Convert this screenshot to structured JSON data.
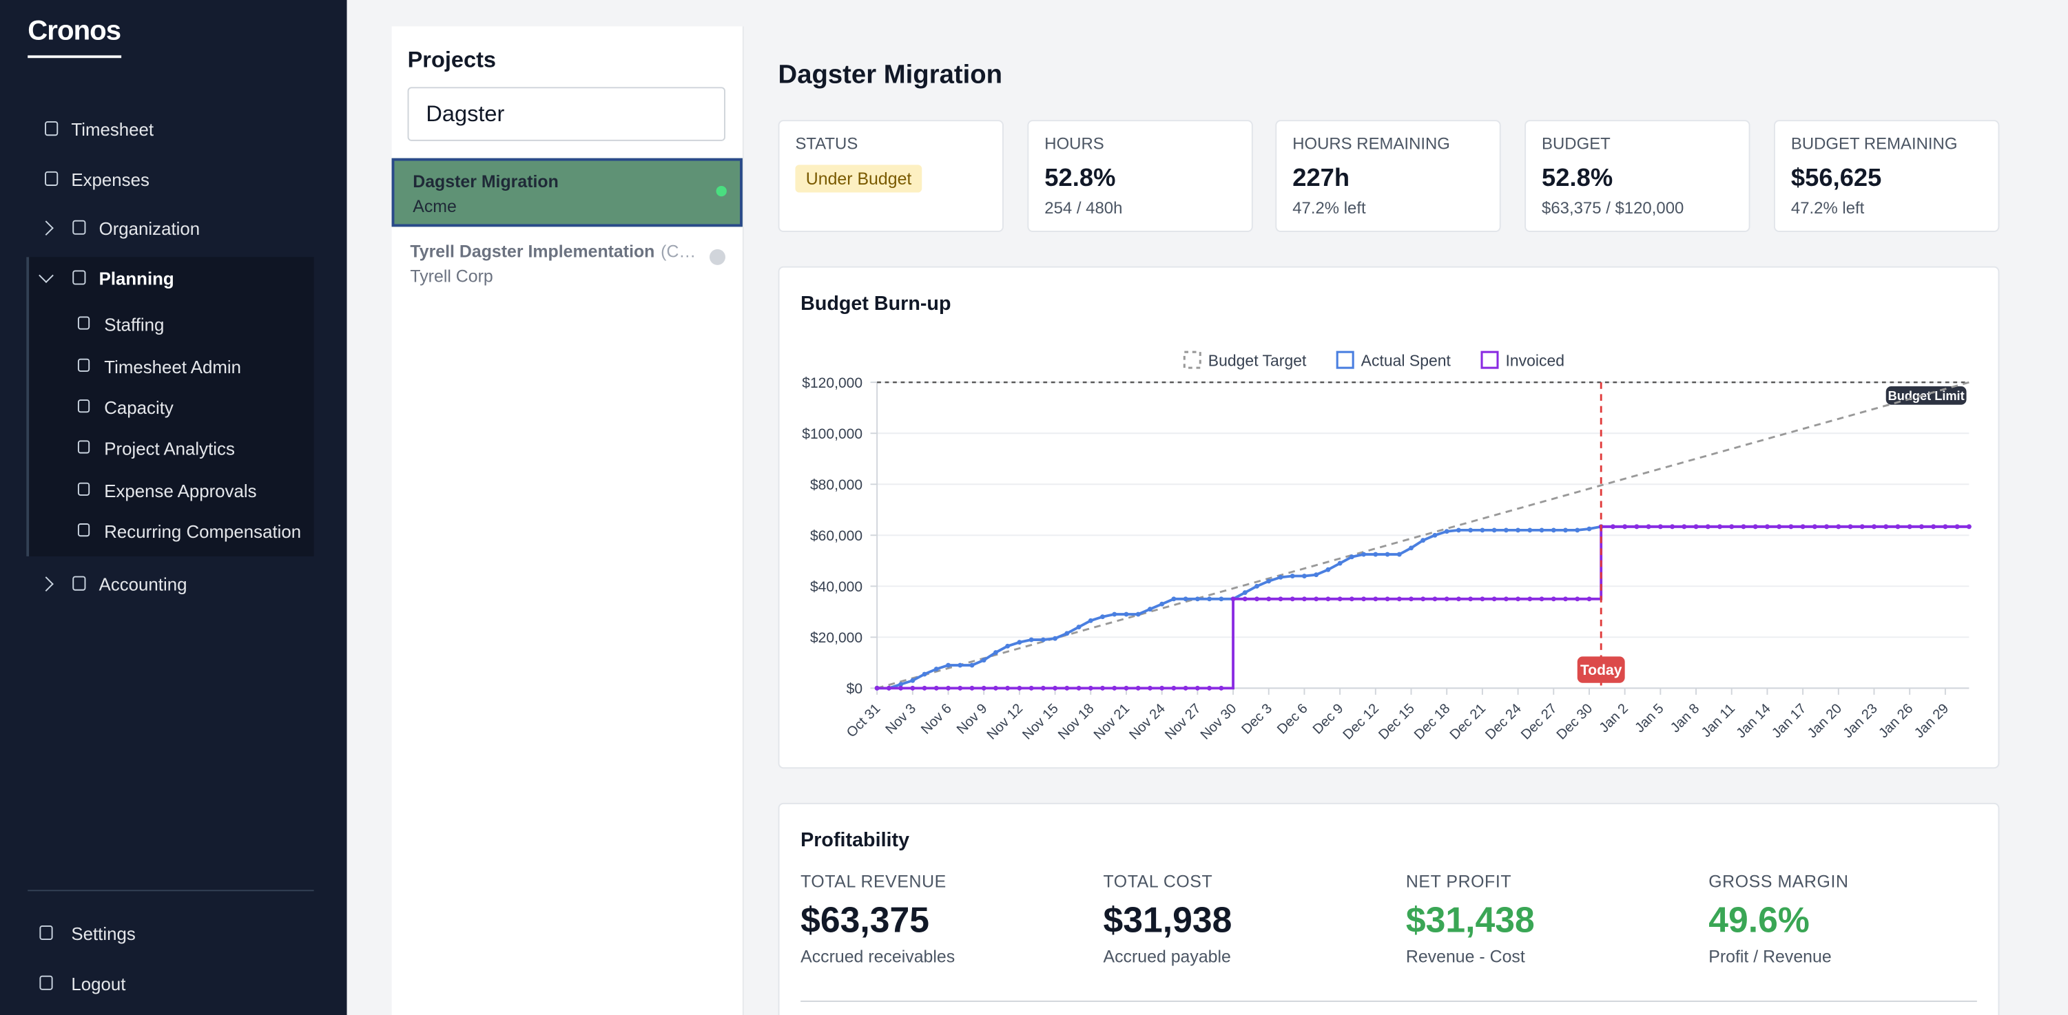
{
  "sidebar": {
    "brand": "Cronos",
    "nav": [
      {
        "label": "Timesheet"
      },
      {
        "label": "Expenses"
      },
      {
        "label": "Organization"
      },
      {
        "label": "Planning",
        "children": [
          {
            "label": "Staffing"
          },
          {
            "label": "Timesheet Admin"
          },
          {
            "label": "Capacity"
          },
          {
            "label": "Project Analytics"
          },
          {
            "label": "Expense Approvals"
          },
          {
            "label": "Recurring Compensation"
          }
        ]
      },
      {
        "label": "Accounting"
      }
    ],
    "bottom": [
      {
        "label": "Settings"
      },
      {
        "label": "Logout"
      }
    ]
  },
  "projects": {
    "title": "Projects",
    "search": "Dagster",
    "items": [
      {
        "name": "Dagster Migration",
        "client": "Acme"
      },
      {
        "name": "Tyrell Dagster Implementation",
        "tag": "(C…",
        "client": "Tyrell Corp"
      }
    ]
  },
  "header": {
    "title": "Dagster Migration"
  },
  "kpis": [
    {
      "label": "STATUS",
      "badge": "Under Budget"
    },
    {
      "label": "HOURS",
      "value": "52.8%",
      "sub": "254 / 480h"
    },
    {
      "label": "HOURS REMAINING",
      "value": "227h",
      "sub": "47.2% left"
    },
    {
      "label": "BUDGET",
      "value": "52.8%",
      "sub": "$63,375 / $120,000"
    },
    {
      "label": "BUDGET REMAINING",
      "value": "$56,625",
      "sub": "47.2% left"
    }
  ],
  "chart_data": {
    "type": "line",
    "title": "Budget Burn-up",
    "categories": [
      "Oct 31",
      null,
      null,
      "Nov 3",
      null,
      null,
      "Nov 6",
      null,
      null,
      "Nov 9",
      null,
      null,
      "Nov 12",
      null,
      null,
      "Nov 15",
      null,
      null,
      "Nov 18",
      null,
      null,
      "Nov 21",
      null,
      null,
      "Nov 24",
      null,
      null,
      "Nov 27",
      null,
      null,
      "Nov 30",
      null,
      null,
      "Dec 3",
      null,
      null,
      "Dec 6",
      null,
      null,
      "Dec 9",
      null,
      null,
      "Dec 12",
      null,
      null,
      "Dec 15",
      null,
      null,
      "Dec 18",
      null,
      null,
      "Dec 21",
      null,
      null,
      "Dec 24",
      null,
      null,
      "Dec 27",
      null,
      null,
      "Dec 30",
      null,
      null,
      "Jan 2",
      null,
      null,
      "Jan 5",
      null,
      null,
      "Jan 8",
      null,
      null,
      "Jan 11",
      null,
      null,
      "Jan 14",
      null,
      null,
      "Jan 17",
      null,
      null,
      "Jan 20",
      null,
      null,
      "Jan 23",
      null,
      null,
      "Jan 26",
      null,
      null,
      "Jan 29",
      null,
      null
    ],
    "target_line": {
      "name": "Budget Target",
      "color": "#999999",
      "start": 0,
      "end": 120000
    },
    "series": [
      {
        "name": "Actual Spent",
        "color": "#4a7fe0",
        "values": [
          0,
          0,
          1500,
          3000,
          5500,
          7500,
          9000,
          9000,
          9000,
          11000,
          14000,
          16500,
          18000,
          19000,
          19000,
          19500,
          21500,
          24000,
          26500,
          28000,
          29000,
          29000,
          29000,
          31000,
          33000,
          35000,
          35000,
          35000,
          35000,
          35000,
          35000,
          37500,
          40000,
          42000,
          43500,
          44000,
          44000,
          44500,
          46500,
          49000,
          51500,
          52500,
          52500,
          52500,
          52500,
          55000,
          58000,
          60000,
          61500,
          62000,
          62000,
          62000,
          62000,
          62000,
          62000,
          62000,
          62000,
          62000,
          62000,
          62000,
          62500,
          63375,
          63375,
          63375,
          63375,
          63375,
          63375,
          63375,
          63375,
          63375,
          63375,
          63375,
          63375,
          63375,
          63375,
          63375,
          63375,
          63375,
          63375,
          63375,
          63375,
          63375,
          63375,
          63375,
          63375,
          63375,
          63375,
          63375,
          63375,
          63375,
          63375,
          63375,
          63375
        ]
      },
      {
        "name": "Invoiced",
        "color": "#8a2be2",
        "step": true,
        "values": [
          0,
          0,
          0,
          0,
          0,
          0,
          0,
          0,
          0,
          0,
          0,
          0,
          0,
          0,
          0,
          0,
          0,
          0,
          0,
          0,
          0,
          0,
          0,
          0,
          0,
          0,
          0,
          0,
          0,
          0,
          35000,
          35000,
          35000,
          35000,
          35000,
          35000,
          35000,
          35000,
          35000,
          35000,
          35000,
          35000,
          35000,
          35000,
          35000,
          35000,
          35000,
          35000,
          35000,
          35000,
          35000,
          35000,
          35000,
          35000,
          35000,
          35000,
          35000,
          35000,
          35000,
          35000,
          35000,
          63375,
          63375,
          63375,
          63375,
          63375,
          63375,
          63375,
          63375,
          63375,
          63375,
          63375,
          63375,
          63375,
          63375,
          63375,
          63375,
          63375,
          63375,
          63375,
          63375,
          63375,
          63375,
          63375,
          63375,
          63375,
          63375,
          63375,
          63375,
          63375,
          63375,
          63375,
          63375
        ]
      }
    ],
    "budget_limit": {
      "label": "Budget Limit",
      "value": 120000
    },
    "today": {
      "label": "Today",
      "x": 61
    },
    "ylim": [
      0,
      120000
    ],
    "yticks": [
      {
        "value": 0,
        "label": "$0"
      },
      {
        "value": 20000,
        "label": "$20,000"
      },
      {
        "value": 40000,
        "label": "$40,000"
      },
      {
        "value": 60000,
        "label": "$60,000"
      },
      {
        "value": 80000,
        "label": "$80,000"
      },
      {
        "value": 100000,
        "label": "$100,000"
      },
      {
        "value": 120000,
        "label": "$120,000"
      }
    ],
    "grid": true
  },
  "profitability": {
    "title": "Profitability",
    "metrics": [
      {
        "label": "TOTAL REVENUE",
        "value": "$63,375",
        "sub": "Accrued receivables"
      },
      {
        "label": "TOTAL COST",
        "value": "$31,938",
        "sub": "Accrued payable"
      },
      {
        "label": "NET PROFIT",
        "value": "$31,438",
        "sub": "Revenue - Cost",
        "color": "#3aa655"
      },
      {
        "label": "GROSS MARGIN",
        "value": "49.6%",
        "sub": "Profit / Revenue",
        "color": "#3aa655"
      }
    ]
  }
}
